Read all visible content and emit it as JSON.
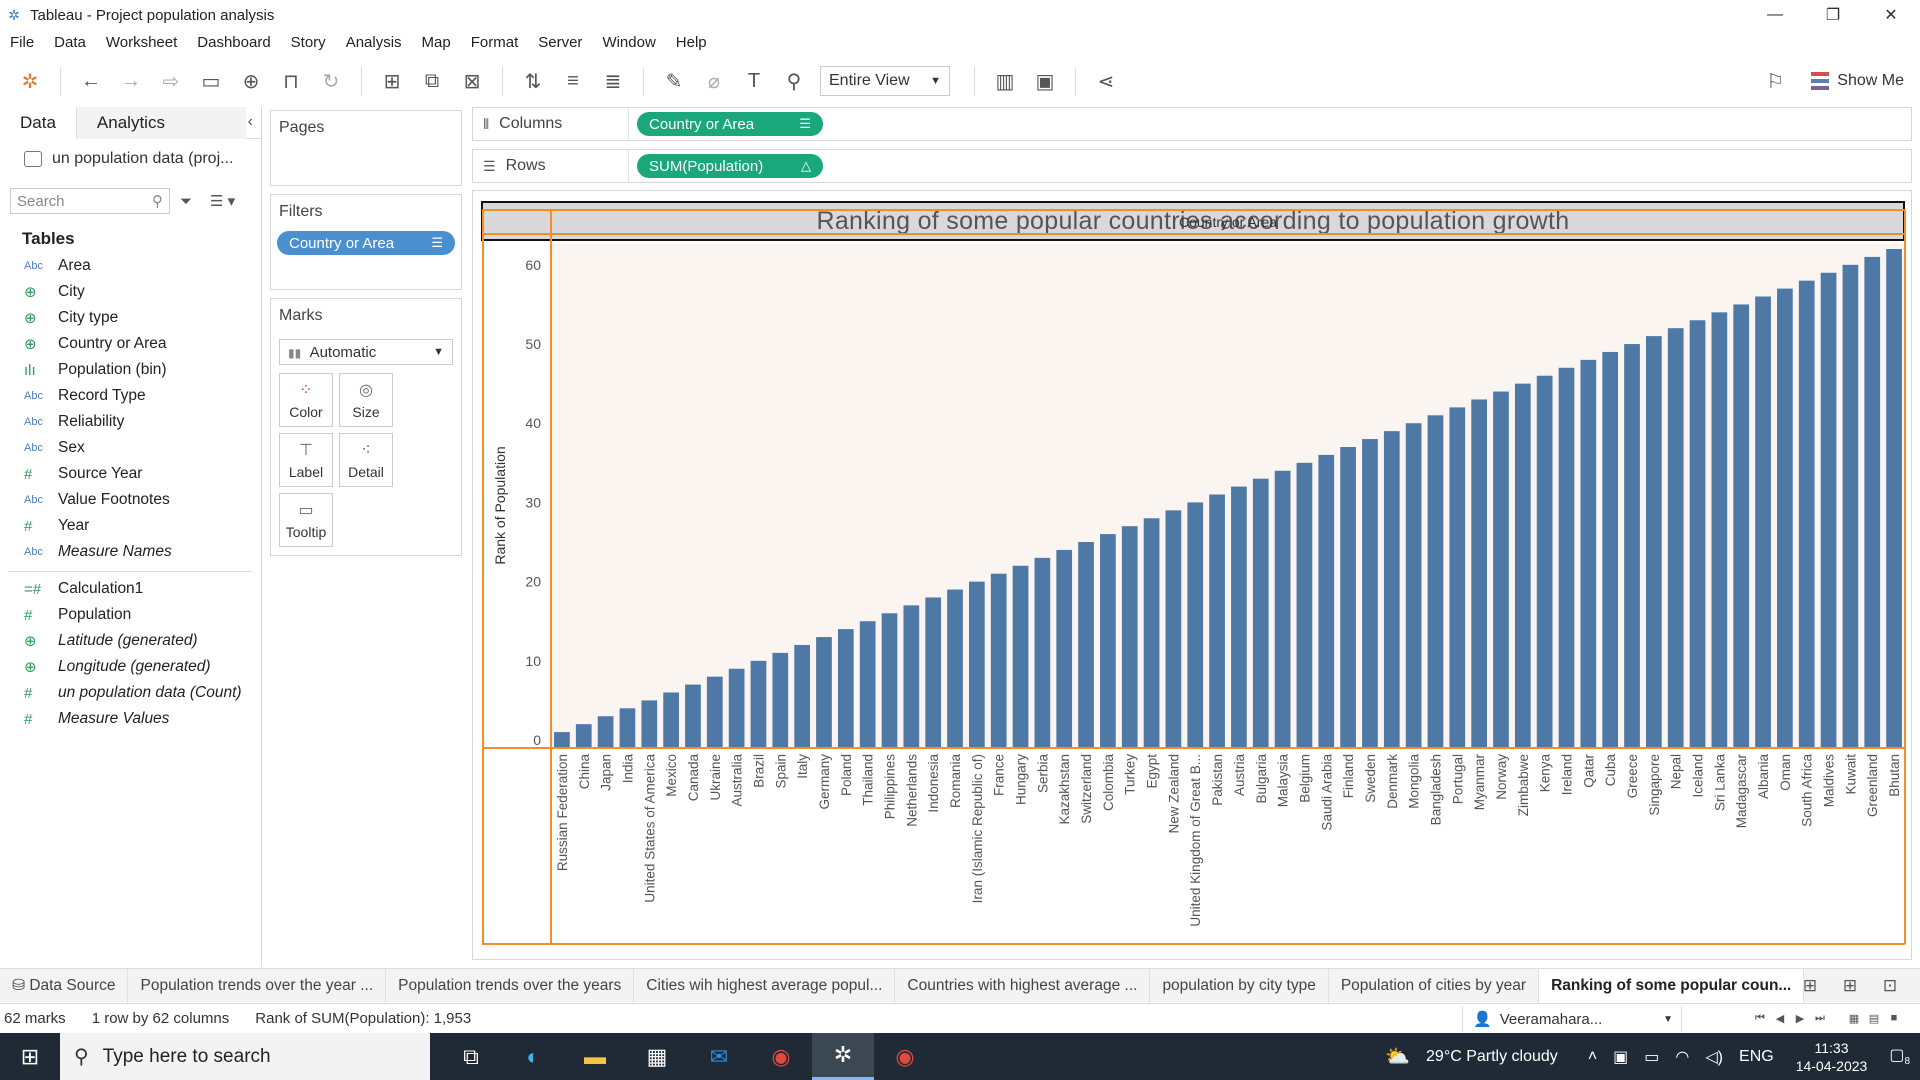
{
  "window": {
    "title": "Tableau - Project population analysis",
    "controls": [
      "—",
      "❐",
      "✕"
    ]
  },
  "menu": [
    "File",
    "Data",
    "Worksheet",
    "Dashboard",
    "Story",
    "Analysis",
    "Map",
    "Format",
    "Server",
    "Window",
    "Help"
  ],
  "toolbar": {
    "fit_select": "Entire View",
    "show_me": "Show Me"
  },
  "data_pane": {
    "tab_data": "Data",
    "tab_analytics": "Analytics",
    "datasource": "un population data (proj...",
    "search_placeholder": "Search",
    "tables_title": "Tables",
    "dimensions": [
      {
        "type": "Abc",
        "name": "Area"
      },
      {
        "type": "geo",
        "name": "City"
      },
      {
        "type": "geo",
        "name": "City type"
      },
      {
        "type": "geo",
        "name": "Country or Area"
      },
      {
        "type": "bin",
        "name": "Population (bin)"
      },
      {
        "type": "Abc",
        "name": "Record Type"
      },
      {
        "type": "Abc",
        "name": "Reliability"
      },
      {
        "type": "Abc",
        "name": "Sex"
      },
      {
        "type": "#",
        "name": "Source Year"
      },
      {
        "type": "Abc",
        "name": "Value Footnotes"
      },
      {
        "type": "#",
        "name": "Year"
      },
      {
        "type": "Abc",
        "name": "Measure Names",
        "italic": true
      }
    ],
    "measures": [
      {
        "type": "=#",
        "name": "Calculation1"
      },
      {
        "type": "#",
        "name": "Population"
      },
      {
        "type": "geo",
        "name": "Latitude (generated)",
        "italic": true
      },
      {
        "type": "geo",
        "name": "Longitude (generated)",
        "italic": true
      },
      {
        "type": "#",
        "name": "un population data (Count)",
        "italic": true
      },
      {
        "type": "#",
        "name": "Measure Values",
        "italic": true
      }
    ]
  },
  "shelves": {
    "pages_label": "Pages",
    "filters_label": "Filters",
    "filter_pill": "Country or Area",
    "marks_label": "Marks",
    "marks_type": "Automatic",
    "mark_buttons": [
      "Color",
      "Size",
      "Label",
      "Detail",
      "Tooltip"
    ],
    "columns_label": "Columns",
    "columns_pill": "Country or Area",
    "rows_label": "Rows",
    "rows_pill": "SUM(Population)"
  },
  "chart_data": {
    "type": "bar",
    "title": "Ranking of some popular countries according to population growth",
    "xlabel": "Country or Area",
    "ylabel": "Rank of Population",
    "ylim": [
      0,
      62
    ],
    "yticks": [
      0,
      10,
      20,
      30,
      40,
      50,
      60
    ],
    "bar_color": "#4e79a7",
    "categories": [
      "Russian Federation",
      "China",
      "Japan",
      "India",
      "United States of America",
      "Mexico",
      "Canada",
      "Ukraine",
      "Australia",
      "Brazil",
      "Spain",
      "Italy",
      "Germany",
      "Poland",
      "Thailand",
      "Philippines",
      "Netherlands",
      "Indonesia",
      "Romania",
      "Iran (Islamic Republic of)",
      "France",
      "Hungary",
      "Serbia",
      "Kazakhstan",
      "Switzerland",
      "Colombia",
      "Turkey",
      "Egypt",
      "New Zealand",
      "United Kingdom of Great B...",
      "Pakistan",
      "Austria",
      "Bulgaria",
      "Malaysia",
      "Belgium",
      "Saudi Arabia",
      "Finland",
      "Sweden",
      "Denmark",
      "Mongolia",
      "Bangladesh",
      "Portugal",
      "Myanmar",
      "Norway",
      "Zimbabwe",
      "Kenya",
      "Ireland",
      "Qatar",
      "Cuba",
      "Greece",
      "Singapore",
      "Nepal",
      "Iceland",
      "Sri Lanka",
      "Madagascar",
      "Albania",
      "Oman",
      "South Africa",
      "Maldives",
      "Kuwait",
      "Greenland",
      "Bhutan"
    ],
    "values": [
      1,
      2,
      3,
      4,
      5,
      6,
      7,
      8,
      9,
      10,
      11,
      12,
      13,
      14,
      15,
      16,
      17,
      18,
      19,
      20,
      21,
      22,
      23,
      24,
      25,
      26,
      27,
      28,
      29,
      30,
      31,
      32,
      33,
      34,
      35,
      36,
      37,
      38,
      39,
      40,
      41,
      42,
      43,
      44,
      45,
      46,
      47,
      48,
      49,
      50,
      51,
      52,
      53,
      54,
      55,
      56,
      57,
      58,
      59,
      60,
      61,
      62
    ]
  },
  "sheet_tabs": {
    "data_source": "Data Source",
    "tabs": [
      "Population trends over the year ...",
      "Population trends over the years",
      "Cities wih highest average popul...",
      "Countries with highest average ...",
      "population by city type",
      "Population of cities by year",
      "Ranking of some popular coun..."
    ],
    "active_index": 6
  },
  "status": {
    "marks": "62 marks",
    "layout": "1 row by 62 columns",
    "summary": "Rank of SUM(Population): 1,953",
    "user": "Veeramahara..."
  },
  "taskbar": {
    "search_placeholder": "Type here to search",
    "weather": "29°C  Partly cloudy",
    "lang": "ENG",
    "time": "11:33",
    "date": "14-04-2023",
    "notifications": "8"
  }
}
